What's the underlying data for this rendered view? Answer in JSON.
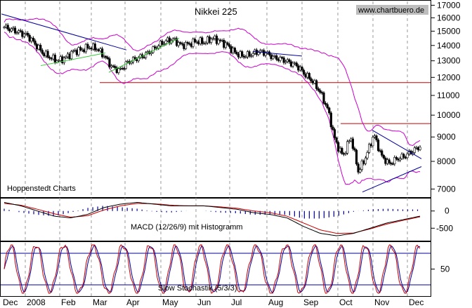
{
  "chart_data": [
    {
      "type": "candlestick",
      "title": "Nikkei 225",
      "watermark": "www.chartbuero.de",
      "source_label": "Hoppenstedt Charts",
      "x_ticks": [
        "Dec",
        "2008",
        "Feb",
        "Mar",
        "Apr",
        "May",
        "Jun",
        "Jul",
        "Aug",
        "Sep",
        "Oct",
        "Nov",
        "Dec"
      ],
      "y_ticks": [
        17000,
        16000,
        15000,
        14000,
        13000,
        12000,
        11000,
        10000,
        9000,
        8000,
        7000
      ],
      "yscale": "log",
      "ylim": [
        6800,
        17200
      ],
      "series_close": [
        15300,
        15100,
        14900,
        14700,
        14100,
        13500,
        13200,
        13000,
        13200,
        13600,
        13700,
        13900,
        13800,
        13300,
        12600,
        12400,
        12900,
        13100,
        13300,
        13600,
        14000,
        14300,
        14400,
        14000,
        14100,
        14300,
        14200,
        14500,
        14300,
        14000,
        13500,
        13300,
        13400,
        13600,
        13500,
        13200,
        13100,
        12900,
        12700,
        12200,
        11800,
        11200,
        10300,
        8800,
        8200,
        9000,
        7600,
        8200,
        9100,
        8200,
        7900,
        8100,
        8200,
        8400,
        8600
      ],
      "horizontal_lines": [
        11700,
        9600
      ],
      "bands": "Bollinger bands",
      "colors": {
        "price": "#000000",
        "band": "#cc00cc",
        "trend": "#000099",
        "support": "#cc0000",
        "uptrend": "#33cc33"
      }
    },
    {
      "type": "line",
      "label": "MACD (12/26/9) mit Histogramm",
      "y_ticks": [
        0,
        -500
      ],
      "series": [
        {
          "values": [
            250,
            150,
            0,
            -150,
            -200,
            -100,
            100,
            200,
            250,
            200,
            150,
            150,
            150,
            100,
            50,
            -50,
            -100,
            -200,
            -450,
            -650,
            -720,
            -650,
            -500,
            -350,
            -250,
            -150
          ]
        },
        {
          "values": [
            220,
            170,
            50,
            -80,
            -180,
            -140,
            30,
            150,
            220,
            210,
            170,
            150,
            150,
            120,
            80,
            0,
            -50,
            -150,
            -350,
            -550,
            -650,
            -640,
            -520,
            -380,
            -270,
            -170
          ]
        }
      ],
      "colors": {
        "macd": "#000000",
        "signal": "#cc0000",
        "histogram": "#000099"
      }
    },
    {
      "type": "line",
      "label": "Slow Stochastik (5/3/3)",
      "y_ticks": [
        50
      ],
      "ylim": [
        0,
        100
      ],
      "guides": [
        80,
        20
      ],
      "colors": {
        "k": "#cc0000",
        "d": "#000099",
        "guide": "#000099"
      }
    }
  ]
}
